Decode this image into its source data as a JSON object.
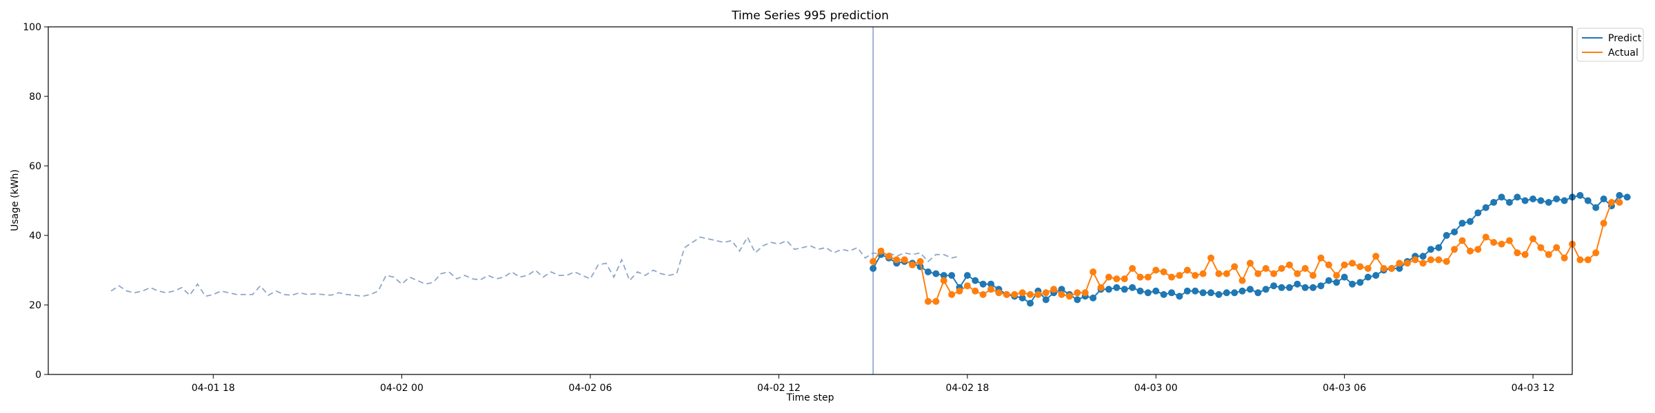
{
  "chart_data": {
    "type": "line",
    "title": "Time Series 995 prediction",
    "xlabel": "Time step",
    "ylabel": "Usage (kWh)",
    "ylim": [
      0,
      100
    ],
    "yticks": [
      0,
      20,
      40,
      60,
      80,
      100
    ],
    "xlim_hours": [
      -5.25,
      43.25
    ],
    "xticks": [
      {
        "label": "04-01 18",
        "hour": 0
      },
      {
        "label": "04-02 00",
        "hour": 6
      },
      {
        "label": "04-02 06",
        "hour": 12
      },
      {
        "label": "04-02 12",
        "hour": 18
      },
      {
        "label": "04-02 18",
        "hour": 24
      },
      {
        "label": "04-03 00",
        "hour": 30
      },
      {
        "label": "04-03 06",
        "hour": 36
      },
      {
        "label": "04-03 12",
        "hour": 42
      }
    ],
    "forecast_start_hour": 21.0,
    "step_hours": 0.25,
    "history_start_hour": -3.25,
    "history": [
      24,
      25.5,
      24,
      23.5,
      24,
      25,
      24,
      23.5,
      24,
      25,
      22.8,
      26,
      22.5,
      23,
      24,
      23.5,
      23,
      23,
      23,
      25.5,
      22.8,
      24,
      23,
      22.8,
      23.5,
      23,
      23.2,
      23,
      22.8,
      23.5,
      23,
      22.8,
      22.5,
      23,
      24,
      28.5,
      28,
      26,
      28,
      27,
      26,
      26.5,
      29,
      29.5,
      27.5,
      28.5,
      27.5,
      27.2,
      28.5,
      27.5,
      28,
      29.5,
      28,
      28.5,
      30,
      28,
      29.5,
      28.5,
      28.5,
      29.5,
      28.5,
      27.5,
      31.5,
      32,
      28,
      33,
      27,
      29.5,
      28.5,
      30,
      29,
      28.5,
      29,
      36.5,
      38,
      39.5,
      39,
      38.5,
      38,
      38.5,
      35.5,
      39.5,
      35,
      37,
      38,
      37.5,
      38.5,
      36,
      36.5,
      37,
      36,
      36.5,
      35,
      36,
      35.5,
      36.5,
      33.5,
      35,
      34.5,
      35,
      34,
      35,
      34.5,
      35,
      32.5,
      34.5,
      34.5,
      33.5,
      34
    ],
    "legend_position": "top-right",
    "series": [
      {
        "name": "Predict",
        "color": "#1f77b4",
        "start_hour": 21.0,
        "values": [
          30.5,
          34.5,
          33.5,
          32,
          32.5,
          32,
          31,
          29.5,
          29,
          28.5,
          28.5,
          25,
          28.5,
          27,
          26,
          26,
          24.5,
          23,
          22.5,
          22,
          20.5,
          24,
          21.5,
          23.5,
          24.5,
          23,
          21.5,
          22.5,
          22,
          24.5,
          24.5,
          25,
          24.5,
          25,
          24,
          23.5,
          24,
          23,
          23.5,
          22.5,
          24,
          24,
          23.5,
          23.5,
          23,
          23.5,
          23.5,
          24,
          24.5,
          23.5,
          24.5,
          25.5,
          25,
          25,
          26,
          25,
          25,
          25.5,
          27,
          26.5,
          28,
          26,
          26.5,
          28,
          28.5,
          30,
          30.5,
          30.5,
          32.5,
          34,
          34,
          36,
          36.5,
          40,
          41,
          43.5,
          44,
          46.5,
          48,
          49.5,
          51,
          49.5,
          51,
          50,
          50.5,
          50,
          49.5,
          50.5,
          50,
          51,
          51.5,
          50,
          48,
          50.5,
          48.5,
          51.5,
          51
        ]
      },
      {
        "name": "Actual",
        "color": "#ff7f0e",
        "start_hour": 21.0,
        "values": [
          32.5,
          35.5,
          34,
          33,
          33,
          31.5,
          32.5,
          21,
          21,
          27,
          23,
          24,
          25.5,
          24,
          23,
          24.5,
          23.5,
          23,
          23,
          23.5,
          23,
          23,
          23.5,
          24.5,
          23,
          22.5,
          23.5,
          23.5,
          29.5,
          25,
          28,
          27.5,
          27.5,
          30.5,
          28,
          28,
          30,
          29.5,
          28,
          28.5,
          30,
          28.5,
          29,
          33.5,
          29,
          29,
          31,
          27,
          32,
          29,
          30.5,
          29,
          30.5,
          31.5,
          29,
          30.5,
          28.5,
          33.5,
          31.5,
          28.5,
          31.5,
          32,
          31,
          30.5,
          34,
          30.5,
          30.5,
          32,
          32,
          33,
          32,
          33,
          33,
          32.5,
          36,
          38.5,
          35.5,
          36,
          39.5,
          38,
          37.5,
          38.5,
          35,
          34.5,
          39,
          36.5,
          34.5,
          36.5,
          33.5,
          37.5,
          33,
          33,
          35,
          43.5,
          49.5,
          49.5
        ]
      }
    ]
  }
}
